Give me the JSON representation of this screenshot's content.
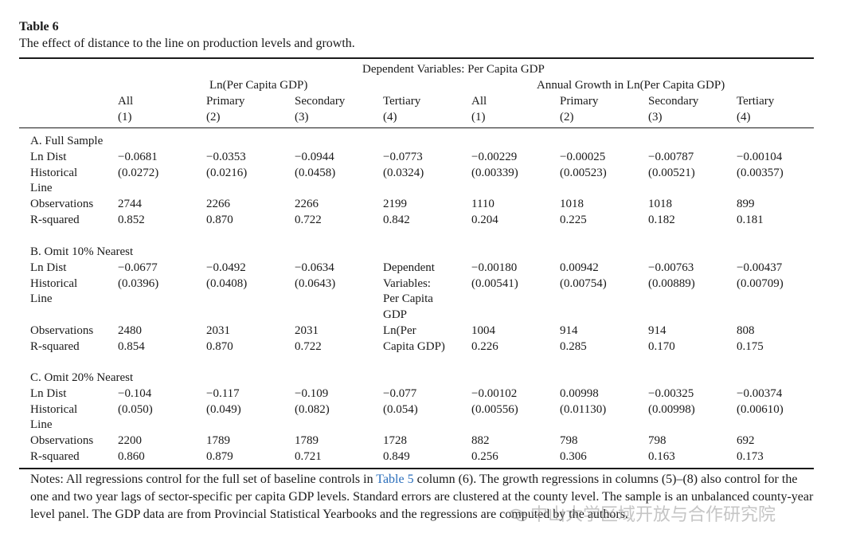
{
  "caption": {
    "number": "Table 6",
    "title": "The effect of distance to the line on production levels and growth."
  },
  "header": {
    "top": "Dependent Variables: Per Capita GDP",
    "group_left": "Ln(Per Capita GDP)",
    "group_right": "Annual Growth in Ln(Per Capita GDP)",
    "columns": [
      {
        "name": "All",
        "num": "(1)"
      },
      {
        "name": "Primary",
        "num": "(2)"
      },
      {
        "name": "Secondary",
        "num": "(3)"
      },
      {
        "name": "Tertiary",
        "num": "(4)"
      },
      {
        "name": "All",
        "num": "(1)"
      },
      {
        "name": "Primary",
        "num": "(2)"
      },
      {
        "name": "Secondary",
        "num": "(3)"
      },
      {
        "name": "Tertiary",
        "num": "(4)"
      }
    ]
  },
  "sections": [
    {
      "title": "A. Full Sample",
      "lndist_label": "Ln Dist",
      "hist_label": "Historical",
      "line_label": "Line",
      "obs_label": "Observations",
      "r2_label": "R-squared",
      "coef": [
        "−0.0681",
        "−0.0353",
        "−0.0944",
        "−0.0773",
        "−0.00229",
        "−0.00025",
        "−0.00787",
        "−0.00104"
      ],
      "se": [
        "(0.0272)",
        "(0.0216)",
        "(0.0458)",
        "(0.0324)",
        "(0.00339)",
        "(0.00523)",
        "(0.00521)",
        "(0.00357)"
      ],
      "obs": [
        "2744",
        "2266",
        "2266",
        "2199",
        "1110",
        "1018",
        "1018",
        "899"
      ],
      "r2": [
        "0.852",
        "0.870",
        "0.722",
        "0.842",
        "0.204",
        "0.225",
        "0.182",
        "0.181"
      ]
    },
    {
      "title": "B. Omit 10% Nearest",
      "lndist_label": "Ln Dist",
      "hist_label": "Historical",
      "line_label": "Line",
      "obs_label": "Observations",
      "r2_label": "R-squared",
      "coef": [
        "−0.0677",
        "−0.0492",
        "−0.0634",
        "Dependent",
        "−0.00180",
        "0.00942",
        "−0.00763",
        "−0.00437"
      ],
      "se": [
        "(0.0396)",
        "(0.0408)",
        "(0.0643)",
        "Variables:",
        "(0.00541)",
        "(0.00754)",
        "(0.00889)",
        "(0.00709)"
      ],
      "extra_col4": [
        "Per Capita",
        "GDP"
      ],
      "obs": [
        "2480",
        "2031",
        "2031",
        "Ln(Per",
        "1004",
        "914",
        "914",
        "808"
      ],
      "r2": [
        "0.854",
        "0.870",
        "0.722",
        "Capita GDP)",
        "0.226",
        "0.285",
        "0.170",
        "0.175"
      ]
    },
    {
      "title": "C. Omit 20% Nearest",
      "lndist_label": "Ln Dist",
      "hist_label": "Historical",
      "line_label": "Line",
      "obs_label": "Observations",
      "r2_label": "R-squared",
      "coef": [
        "−0.104",
        "−0.117",
        "−0.109",
        "−0.077",
        "−0.00102",
        "0.00998",
        "−0.00325",
        "−0.00374"
      ],
      "se": [
        "(0.050)",
        "(0.049)",
        "(0.082)",
        "(0.054)",
        "(0.00556)",
        "(0.01130)",
        "(0.00998)",
        "(0.00610)"
      ],
      "obs": [
        "2200",
        "1789",
        "1789",
        "1728",
        "882",
        "798",
        "798",
        "692"
      ],
      "r2": [
        "0.860",
        "0.879",
        "0.721",
        "0.849",
        "0.256",
        "0.306",
        "0.163",
        "0.173"
      ]
    }
  ],
  "notes": {
    "part1": "Notes: All regressions control for the full set of baseline controls in ",
    "link": "Table 5",
    "part2": " column (6). The growth regressions in columns (5)–(8) also control for the one and two year lags of sector-specific per capita GDP levels. Standard errors are clustered at the county level. The sample is an unbalanced county-year level panel. The GDP data are from Provincial Statistical Yearbooks and the regressions are computed by the authors."
  },
  "watermark": "中山大学区域开放与合作研究院"
}
